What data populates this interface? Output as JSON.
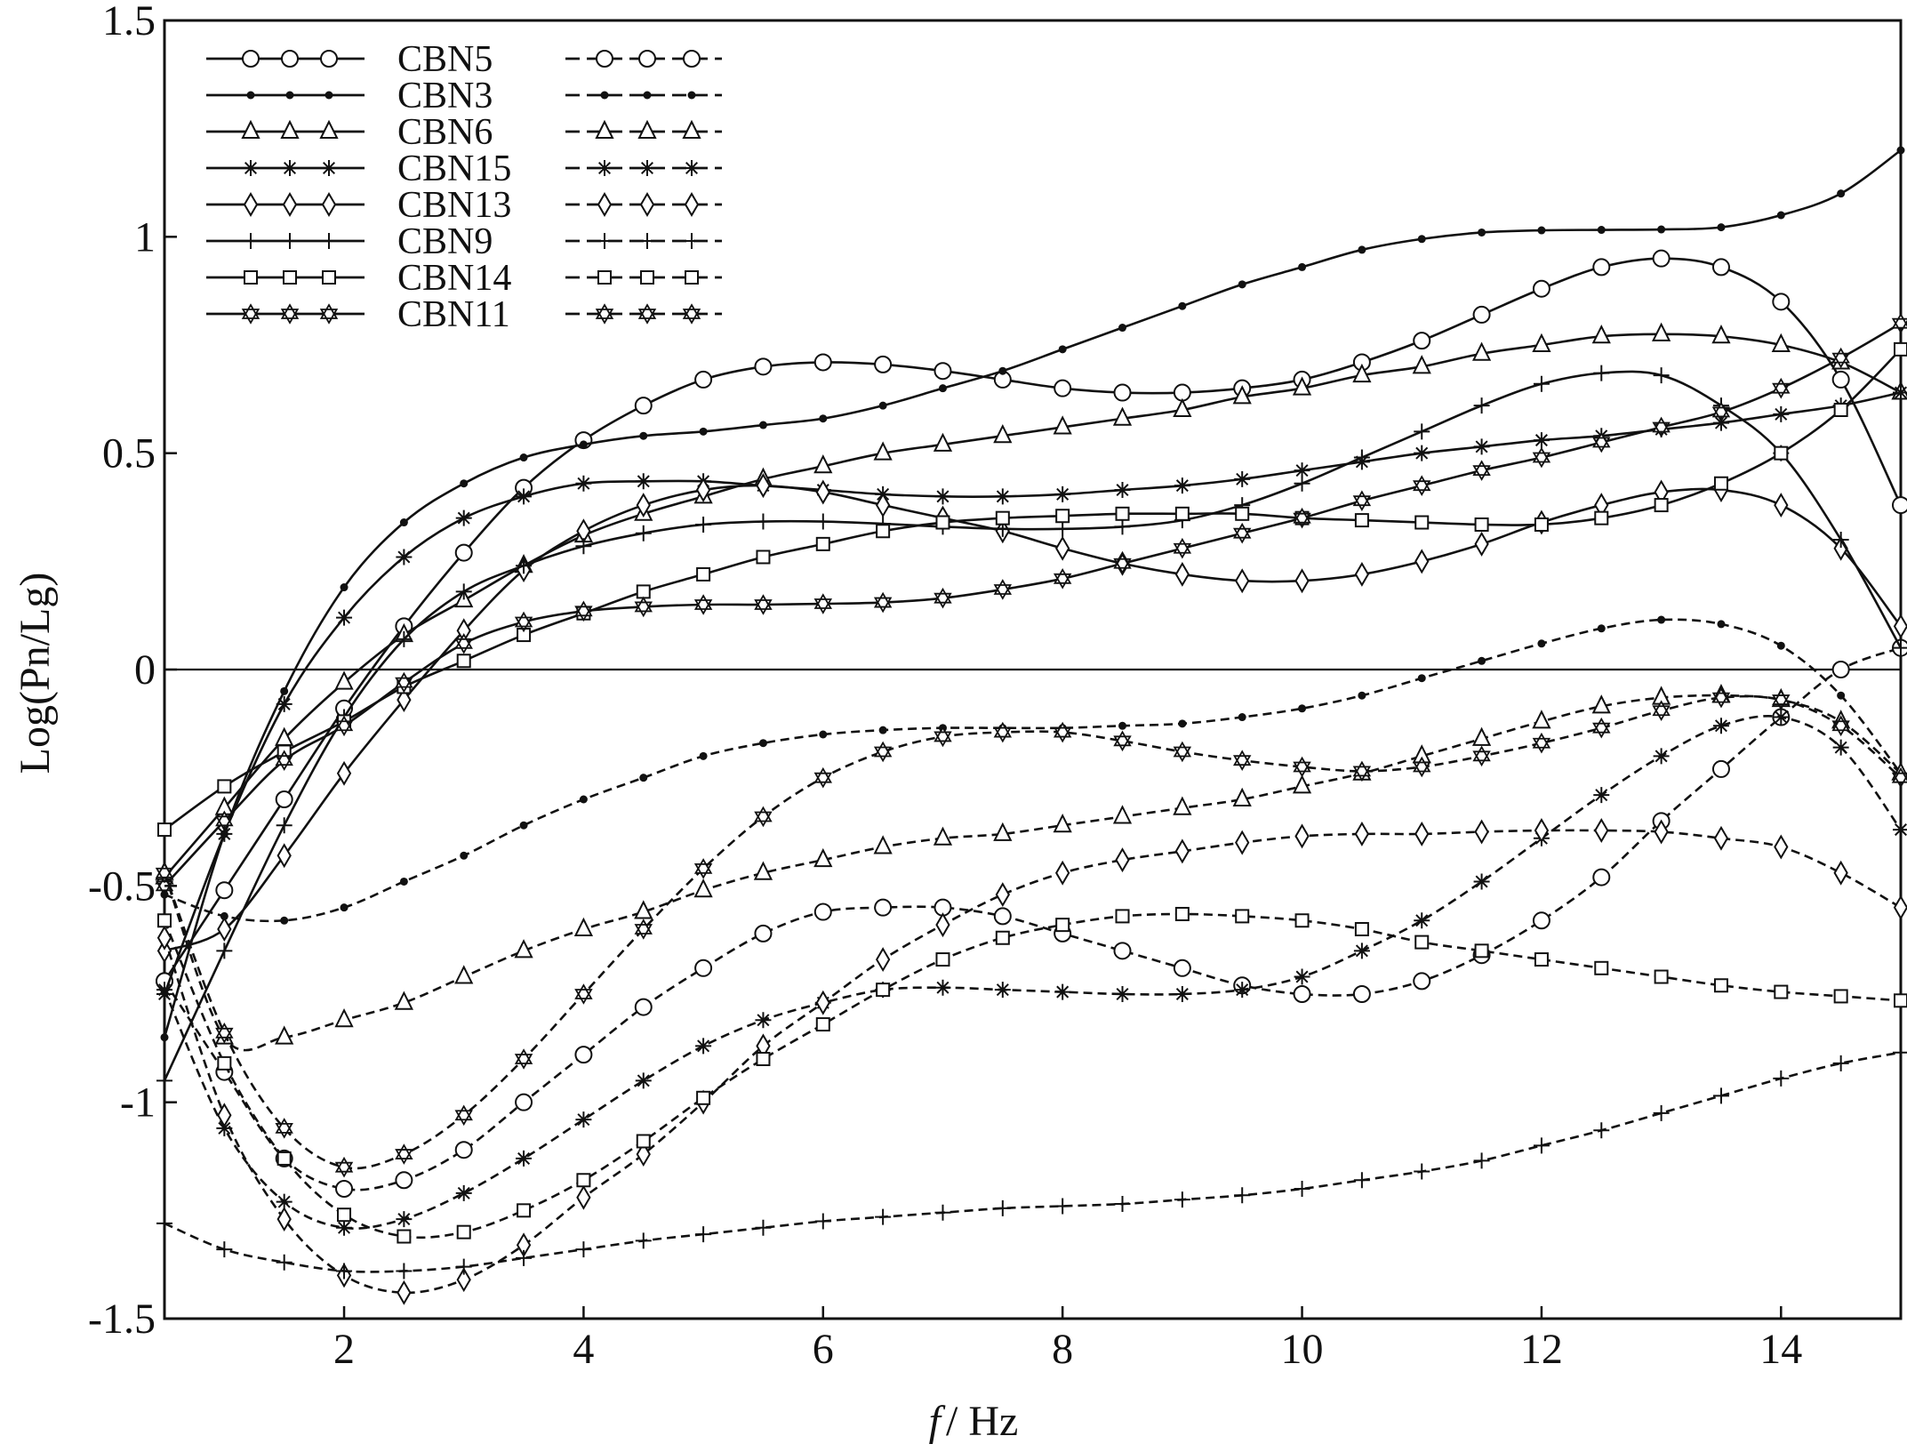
{
  "chart_data": {
    "type": "line",
    "xlabel": "f / Hz",
    "xlabel_italic": "f",
    "xlabel_rest": "/ Hz",
    "ylabel": "Log(Pn/Lg)",
    "xlim": [
      0.5,
      15
    ],
    "ylim": [
      -1.5,
      1.5
    ],
    "xticks": [
      2,
      4,
      6,
      8,
      10,
      12,
      14
    ],
    "xtick_labels": [
      "2",
      "4",
      "6",
      "8",
      "10",
      "12",
      "14"
    ],
    "yticks": [
      1.5,
      1,
      0.5,
      0,
      -0.5,
      -1,
      -1.5
    ],
    "ytick_labels": [
      "1.5",
      "1",
      "0.5",
      "0",
      "-0.5",
      "-1",
      "-1.5"
    ],
    "zero_line": true,
    "grid": false,
    "legend_position": "top-left",
    "x": [
      0.5,
      1,
      1.5,
      2,
      2.5,
      3,
      3.5,
      4,
      4.5,
      5,
      5.5,
      6,
      6.5,
      7,
      7.5,
      8,
      8.5,
      9,
      9.5,
      10,
      10.5,
      11,
      11.5,
      12,
      12.5,
      13,
      13.5,
      14,
      14.5,
      15
    ],
    "series": [
      {
        "name": "CBN5",
        "style": "solid",
        "marker": "circle",
        "values": [
          -0.72,
          -0.51,
          -0.3,
          -0.09,
          0.1,
          0.27,
          0.42,
          0.53,
          0.61,
          0.67,
          0.7,
          0.71,
          0.705,
          0.69,
          0.67,
          0.65,
          0.64,
          0.64,
          0.65,
          0.67,
          0.71,
          0.76,
          0.82,
          0.88,
          0.93,
          0.95,
          0.93,
          0.85,
          0.67,
          0.38
        ]
      },
      {
        "name": "CBN5",
        "style": "dashed",
        "marker": "circle",
        "values": [
          -0.72,
          -0.93,
          -1.13,
          -1.2,
          -1.18,
          -1.11,
          -1.0,
          -0.89,
          -0.78,
          -0.69,
          -0.61,
          -0.56,
          -0.55,
          -0.55,
          -0.57,
          -0.61,
          -0.65,
          -0.69,
          -0.73,
          -0.75,
          -0.75,
          -0.72,
          -0.66,
          -0.58,
          -0.48,
          -0.35,
          -0.23,
          -0.11,
          0.0,
          0.05
        ]
      },
      {
        "name": "CBN3",
        "style": "solid",
        "marker": "dot",
        "values": [
          -0.85,
          -0.38,
          -0.05,
          0.19,
          0.34,
          0.43,
          0.49,
          0.52,
          0.54,
          0.55,
          0.565,
          0.58,
          0.61,
          0.65,
          0.69,
          0.74,
          0.79,
          0.84,
          0.89,
          0.93,
          0.97,
          0.995,
          1.01,
          1.015,
          1.016,
          1.017,
          1.022,
          1.05,
          1.1,
          1.2
        ]
      },
      {
        "name": "CBN3",
        "style": "dashed",
        "marker": "dot",
        "values": [
          -0.52,
          -0.57,
          -0.58,
          -0.55,
          -0.49,
          -0.43,
          -0.36,
          -0.3,
          -0.25,
          -0.2,
          -0.17,
          -0.15,
          -0.14,
          -0.135,
          -0.135,
          -0.135,
          -0.13,
          -0.125,
          -0.11,
          -0.09,
          -0.06,
          -0.02,
          0.02,
          0.06,
          0.095,
          0.115,
          0.105,
          0.055,
          -0.06,
          -0.24
        ]
      },
      {
        "name": "CBN6",
        "style": "solid",
        "marker": "triangle",
        "values": [
          -0.48,
          -0.32,
          -0.16,
          -0.03,
          0.08,
          0.16,
          0.24,
          0.31,
          0.36,
          0.4,
          0.44,
          0.47,
          0.5,
          0.52,
          0.54,
          0.56,
          0.58,
          0.6,
          0.63,
          0.65,
          0.68,
          0.7,
          0.73,
          0.75,
          0.77,
          0.775,
          0.77,
          0.75,
          0.71,
          0.64
        ]
      },
      {
        "name": "CBN6",
        "style": "dashed",
        "marker": "triangle",
        "values": [
          -0.47,
          -0.85,
          -0.85,
          -0.81,
          -0.77,
          -0.71,
          -0.65,
          -0.6,
          -0.56,
          -0.51,
          -0.47,
          -0.44,
          -0.41,
          -0.39,
          -0.38,
          -0.36,
          -0.34,
          -0.32,
          -0.3,
          -0.27,
          -0.24,
          -0.2,
          -0.16,
          -0.12,
          -0.085,
          -0.065,
          -0.06,
          -0.07,
          -0.12,
          -0.24
        ]
      },
      {
        "name": "CBN15",
        "style": "solid",
        "marker": "asterisk",
        "values": [
          -0.75,
          -0.38,
          -0.08,
          0.12,
          0.26,
          0.35,
          0.4,
          0.43,
          0.435,
          0.435,
          0.425,
          0.415,
          0.405,
          0.4,
          0.4,
          0.405,
          0.415,
          0.425,
          0.44,
          0.46,
          0.48,
          0.5,
          0.515,
          0.53,
          0.54,
          0.555,
          0.57,
          0.59,
          0.61,
          0.64
        ]
      },
      {
        "name": "CBN15",
        "style": "dashed",
        "marker": "asterisk",
        "values": [
          -0.74,
          -1.06,
          -1.23,
          -1.29,
          -1.27,
          -1.21,
          -1.13,
          -1.04,
          -0.95,
          -0.87,
          -0.81,
          -0.77,
          -0.74,
          -0.735,
          -0.74,
          -0.745,
          -0.75,
          -0.75,
          -0.74,
          -0.71,
          -0.65,
          -0.58,
          -0.49,
          -0.39,
          -0.29,
          -0.2,
          -0.13,
          -0.11,
          -0.18,
          -0.37
        ]
      },
      {
        "name": "CBN13",
        "style": "solid",
        "marker": "diamond",
        "values": [
          -0.65,
          -0.6,
          -0.43,
          -0.24,
          -0.07,
          0.09,
          0.23,
          0.32,
          0.38,
          0.415,
          0.425,
          0.41,
          0.38,
          0.35,
          0.32,
          0.28,
          0.245,
          0.22,
          0.205,
          0.205,
          0.22,
          0.25,
          0.29,
          0.34,
          0.38,
          0.41,
          0.415,
          0.38,
          0.28,
          0.1
        ]
      },
      {
        "name": "CBN13",
        "style": "dashed",
        "marker": "diamond",
        "values": [
          -0.62,
          -1.03,
          -1.27,
          -1.4,
          -1.44,
          -1.41,
          -1.33,
          -1.22,
          -1.12,
          -1.0,
          -0.87,
          -0.77,
          -0.67,
          -0.59,
          -0.52,
          -0.47,
          -0.44,
          -0.42,
          -0.4,
          -0.385,
          -0.38,
          -0.38,
          -0.375,
          -0.372,
          -0.372,
          -0.375,
          -0.39,
          -0.41,
          -0.47,
          -0.55
        ]
      },
      {
        "name": "CBN9",
        "style": "solid",
        "marker": "plus",
        "values": [
          -0.95,
          -0.65,
          -0.36,
          -0.11,
          0.07,
          0.18,
          0.24,
          0.285,
          0.315,
          0.335,
          0.342,
          0.342,
          0.337,
          0.33,
          0.325,
          0.325,
          0.33,
          0.345,
          0.38,
          0.43,
          0.49,
          0.55,
          0.61,
          0.66,
          0.685,
          0.68,
          0.61,
          0.5,
          0.3,
          0.05
        ]
      },
      {
        "name": "CBN9",
        "style": "dashed",
        "marker": "plus",
        "values": [
          -1.28,
          -1.34,
          -1.37,
          -1.39,
          -1.39,
          -1.38,
          -1.36,
          -1.34,
          -1.32,
          -1.305,
          -1.29,
          -1.275,
          -1.265,
          -1.255,
          -1.245,
          -1.24,
          -1.235,
          -1.225,
          -1.215,
          -1.2,
          -1.18,
          -1.16,
          -1.135,
          -1.1,
          -1.065,
          -1.025,
          -0.985,
          -0.945,
          -0.91,
          -0.885
        ]
      },
      {
        "name": "CBN14",
        "style": "solid",
        "marker": "square",
        "values": [
          -0.37,
          -0.27,
          -0.19,
          -0.12,
          -0.04,
          0.02,
          0.08,
          0.13,
          0.18,
          0.22,
          0.26,
          0.29,
          0.32,
          0.34,
          0.35,
          0.355,
          0.36,
          0.36,
          0.36,
          0.35,
          0.345,
          0.34,
          0.335,
          0.335,
          0.35,
          0.38,
          0.43,
          0.5,
          0.6,
          0.74
        ]
      },
      {
        "name": "CBN14",
        "style": "dashed",
        "marker": "square",
        "values": [
          -0.58,
          -0.91,
          -1.13,
          -1.26,
          -1.31,
          -1.3,
          -1.25,
          -1.18,
          -1.09,
          -0.99,
          -0.9,
          -0.82,
          -0.74,
          -0.67,
          -0.62,
          -0.59,
          -0.57,
          -0.565,
          -0.57,
          -0.58,
          -0.6,
          -0.63,
          -0.65,
          -0.67,
          -0.69,
          -0.71,
          -0.73,
          -0.745,
          -0.755,
          -0.765
        ]
      },
      {
        "name": "CBN11",
        "style": "solid",
        "marker": "star",
        "values": [
          -0.5,
          -0.35,
          -0.21,
          -0.13,
          -0.03,
          0.06,
          0.11,
          0.135,
          0.145,
          0.15,
          0.15,
          0.152,
          0.155,
          0.165,
          0.185,
          0.21,
          0.245,
          0.28,
          0.315,
          0.35,
          0.39,
          0.425,
          0.46,
          0.49,
          0.525,
          0.56,
          0.595,
          0.65,
          0.72,
          0.8
        ]
      },
      {
        "name": "CBN11",
        "style": "dashed",
        "marker": "star",
        "values": [
          -0.47,
          -0.84,
          -1.06,
          -1.15,
          -1.12,
          -1.03,
          -0.9,
          -0.75,
          -0.6,
          -0.46,
          -0.34,
          -0.25,
          -0.19,
          -0.155,
          -0.145,
          -0.145,
          -0.165,
          -0.19,
          -0.21,
          -0.225,
          -0.235,
          -0.225,
          -0.2,
          -0.17,
          -0.135,
          -0.095,
          -0.065,
          -0.07,
          -0.13,
          -0.25
        ]
      }
    ],
    "legend": [
      {
        "label": "CBN5",
        "marker": "circle"
      },
      {
        "label": "CBN3",
        "marker": "dot"
      },
      {
        "label": "CBN6",
        "marker": "triangle"
      },
      {
        "label": "CBN15",
        "marker": "asterisk"
      },
      {
        "label": "CBN13",
        "marker": "diamond"
      },
      {
        "label": "CBN9",
        "marker": "plus"
      },
      {
        "label": "CBN14",
        "marker": "square"
      },
      {
        "label": "CBN11",
        "marker": "star"
      }
    ],
    "colors": {
      "line": "#111111",
      "background": "#ffffff"
    }
  }
}
